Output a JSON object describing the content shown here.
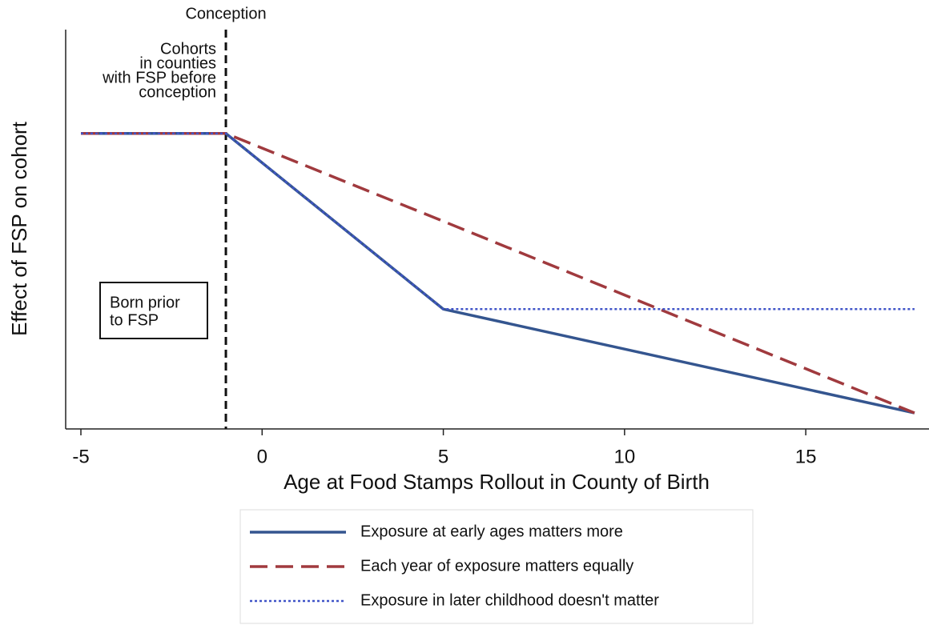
{
  "chart_data": {
    "type": "line",
    "x_label": "Age at Food Stamps Rollout in County of Birth",
    "y_label": "Effect of FSP on cohort",
    "x": [
      -5,
      -1,
      5,
      18
    ],
    "series": [
      {
        "name": "Exposure at early ages matters more",
        "color": "#34558f",
        "style": "solid",
        "values": [
          0.74,
          0.74,
          0.3,
          0.04
        ]
      },
      {
        "name": "Each year of exposure matters equally",
        "color": "#a03a3e",
        "style": "dashed",
        "values": [
          0.74,
          0.74,
          0.52,
          0.04
        ]
      },
      {
        "name": "Exposure in later childhood doesn't matter",
        "color": "#4054c8",
        "style": "dotted",
        "values": [
          0.74,
          0.74,
          0.3,
          0.3
        ]
      }
    ],
    "xlim": [
      -5.42,
      18.4
    ],
    "ylim": [
      0,
      1
    ],
    "xticks": [
      -5,
      0,
      5,
      10,
      15
    ],
    "vline": -1,
    "vline_label": "Conception",
    "annotation_lines": [
      "Cohorts",
      "in counties",
      "with FSP before",
      "conception"
    ],
    "box_lines": [
      "Born prior",
      "to FSP"
    ]
  }
}
